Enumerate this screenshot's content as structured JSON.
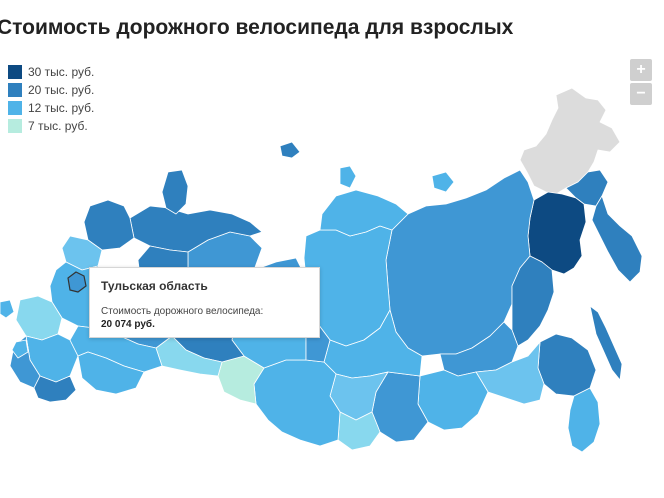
{
  "title": "Стоимость дорожного велосипеда для взрослых",
  "legend": [
    {
      "label": "30 тыс. руб.",
      "color": "#0d4a82"
    },
    {
      "label": "20 тыс. руб.",
      "color": "#2f80be"
    },
    {
      "label": "12 тыс. руб.",
      "color": "#4fb3e8"
    },
    {
      "label": "7 тыс. руб.",
      "color": "#b6ecdf"
    }
  ],
  "zoom": {
    "in_label": "+",
    "out_label": "−"
  },
  "tooltip": {
    "region": "Тульская область",
    "metric_label": "Стоимость дорожного велосипеда:",
    "metric_value": "20 074 руб."
  },
  "colors": {
    "no_data": "#dcdcdc",
    "border": "#ffffff",
    "hover_outline": "#333333"
  }
}
